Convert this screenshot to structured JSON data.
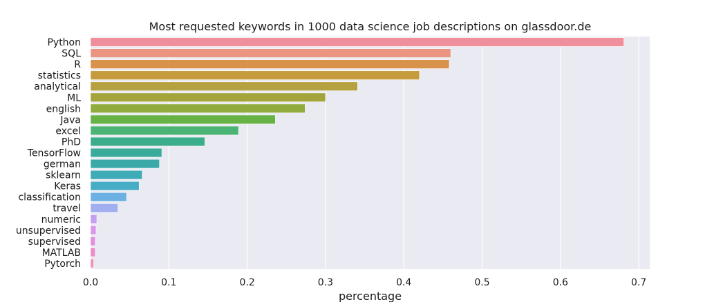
{
  "chart_data": {
    "type": "bar",
    "orientation": "horizontal",
    "title": "Most requested keywords in 1000 data science job descriptions on glassdoor.de",
    "xlabel": "percentage",
    "ylabel": "",
    "xlim": [
      0,
      0.714
    ],
    "xticks": [
      "0.0",
      "0.1",
      "0.2",
      "0.3",
      "0.4",
      "0.5",
      "0.6",
      "0.7"
    ],
    "xtick_values": [
      0,
      0.1,
      0.2,
      0.3,
      0.4,
      0.5,
      0.6,
      0.7
    ],
    "grid": true,
    "categories": [
      "Python",
      "SQL",
      "R",
      "statistics",
      "analytical",
      "ML",
      "english",
      "Java",
      "excel",
      "PhD",
      "TensorFlow",
      "german",
      "sklearn",
      "Keras",
      "classification",
      "travel",
      "numeric",
      "unsupervised",
      "supervised",
      "MATLAB",
      "Pytorch"
    ],
    "values": [
      0.681,
      0.46,
      0.458,
      0.42,
      0.341,
      0.3,
      0.274,
      0.236,
      0.189,
      0.146,
      0.091,
      0.088,
      0.066,
      0.062,
      0.046,
      0.035,
      0.008,
      0.007,
      0.006,
      0.006,
      0.004
    ],
    "colors": [
      "#f08f9c",
      "#eb9580",
      "#d8924c",
      "#c59b3e",
      "#b5a13f",
      "#a3a43c",
      "#90ac3e",
      "#66b245",
      "#4bb475",
      "#3cad8a",
      "#3aab9a",
      "#3ba9a7",
      "#3eabb7",
      "#47acc5",
      "#6db0e4",
      "#a1aef0",
      "#c59ff0",
      "#db97ea",
      "#e190de",
      "#e88ecb",
      "#ee90b7"
    ],
    "background_color": "#eaeaf2",
    "grid_color": "#ffffff"
  }
}
